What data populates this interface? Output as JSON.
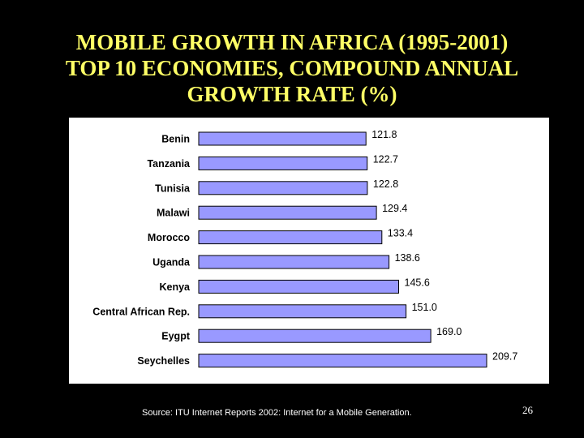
{
  "slide": {
    "title_lines": [
      "MOBILE GROWTH IN AFRICA (1995-2001)",
      "TOP 10 ECONOMIES, COMPOUND ANNUAL",
      "GROWTH RATE (%)"
    ],
    "source": "Source: ITU Internet Reports 2002: Internet for a Mobile Generation.",
    "page_number": "26",
    "colors": {
      "background": "#000000",
      "title": "#ffff66",
      "bar_fill": "#9999ff",
      "panel": "#ffffff"
    }
  },
  "chart_data": {
    "type": "bar",
    "orientation": "horizontal",
    "title": "",
    "xlabel": "",
    "ylabel": "",
    "categories": [
      "Benin",
      "Tanzania",
      "Tunisia",
      "Malawi",
      "Morocco",
      "Uganda",
      "Kenya",
      "Central African Rep.",
      "Eygpt",
      "Seychelles"
    ],
    "values": [
      121.8,
      122.7,
      122.8,
      129.4,
      133.4,
      138.6,
      145.6,
      151.0,
      169.0,
      209.7
    ],
    "value_labels": [
      "121.8",
      "122.7",
      "122.8",
      "129.4",
      "133.4",
      "138.6",
      "145.6",
      "151.0",
      "169.0",
      "209.7"
    ],
    "xlim": [
      0,
      209.7
    ],
    "grid": false,
    "legend": "none"
  }
}
